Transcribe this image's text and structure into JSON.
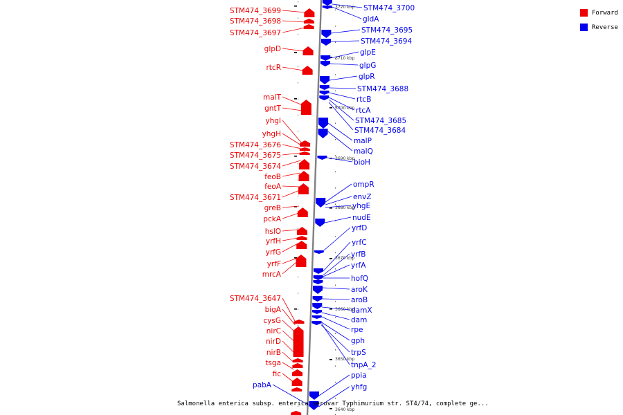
{
  "colors": {
    "forward": "#ee0000",
    "reverse": "#0000ee",
    "backbone": "#808080",
    "tick": "#000000"
  },
  "legend": {
    "forward_label": "Forward",
    "reverse_label": "Reverse"
  },
  "caption": "Salmonella enterica subsp. enterica serovar Typhimurium str. ST4/74, complete ge...",
  "scale_labels": [
    "3720 kbp",
    "3710 kbp",
    "3700 kbp",
    "3690 kbp",
    "3680 kbp",
    "3670 kbp",
    "3660 kbp",
    "3650 kbp",
    "3640 kbp"
  ],
  "forward_genes": [
    "STM474_3699",
    "STM474_3698",
    "STM474_3697",
    "glpD",
    "rtcR",
    "malT",
    "gntT",
    "yhgI",
    "yhgH",
    "STM474_3676",
    "STM474_3675",
    "STM474_3674",
    "feoB",
    "feoA",
    "STM474_3671",
    "greB",
    "pckA",
    "hslO",
    "yrfH",
    "yrfG",
    "yrfF",
    "mrcA",
    "STM474_3647",
    "bigA",
    "cysG",
    "nirC",
    "nirD",
    "nirB",
    "tsga",
    "fic"
  ],
  "reverse_genes_left": [
    "pabA"
  ],
  "reverse_genes": [
    "STM474_3700",
    "gldA",
    "STM474_3695",
    "STM474_3694",
    "glpE",
    "glpG",
    "glpR",
    "STM474_3688",
    "rtcB",
    "rtcA",
    "STM474_3685",
    "STM474_3684",
    "malP",
    "malQ",
    "bioH",
    "ompR",
    "envZ",
    "yhgE",
    "nudE",
    "yrfD",
    "yrfC",
    "yrfB",
    "yrfA",
    "hofQ",
    "aroK",
    "aroB",
    "damX",
    "dam",
    "rpe",
    "gph",
    "trpS",
    "tnpA_2",
    "ppia",
    "yhfg"
  ]
}
